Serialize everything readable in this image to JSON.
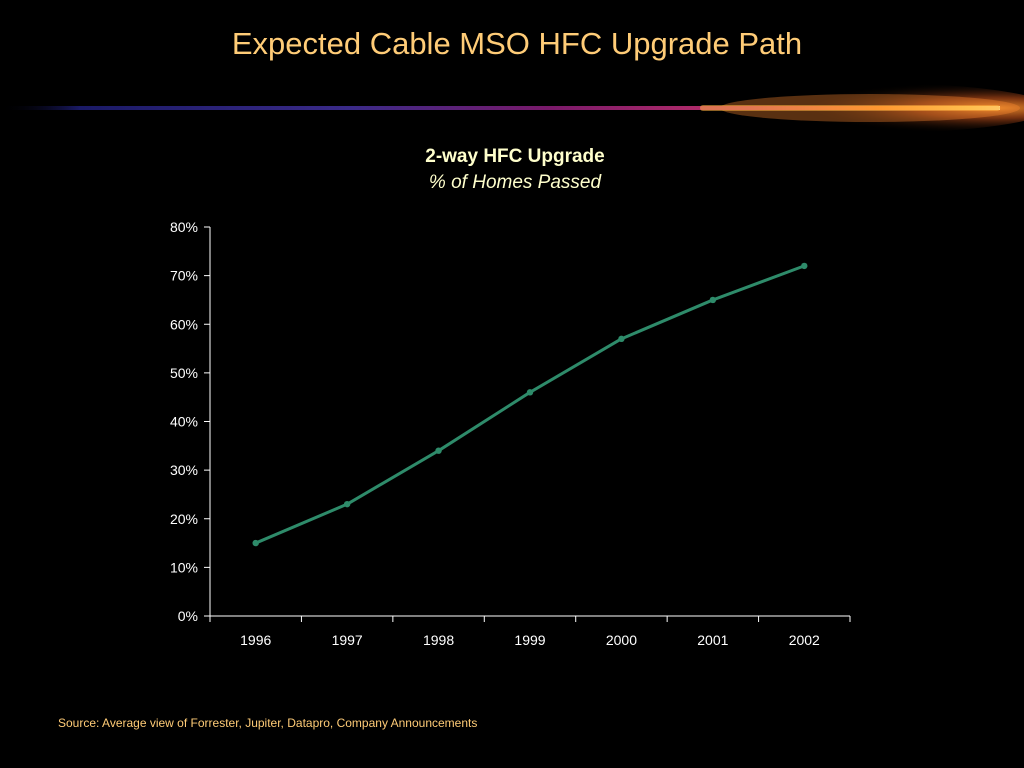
{
  "slide": {
    "title": "Expected Cable MSO HFC Upgrade Path",
    "source": "Source: Average view of Forrester, Jupiter, Datapro, Company Announcements"
  },
  "colors": {
    "background": "#000000",
    "title": "#FFCC77",
    "chart_title": "#FFFFCC",
    "line": "#2E8B6A",
    "axis": "#FFFFFF"
  },
  "chart_data": {
    "type": "line",
    "title": "2-way HFC Upgrade",
    "subtitle": "% of Homes Passed",
    "xlabel": "",
    "ylabel": "",
    "categories": [
      "1996",
      "1997",
      "1998",
      "1999",
      "2000",
      "2001",
      "2002"
    ],
    "series": [
      {
        "values": [
          15,
          23,
          34,
          46,
          57,
          65,
          72
        ]
      }
    ],
    "ylim": [
      0,
      80
    ],
    "yticks": [
      0,
      10,
      20,
      30,
      40,
      50,
      60,
      70,
      80
    ],
    "ytick_labels": [
      "0%",
      "10%",
      "20%",
      "30%",
      "40%",
      "50%",
      "60%",
      "70%",
      "80%"
    ],
    "grid": false,
    "legend": "none"
  }
}
